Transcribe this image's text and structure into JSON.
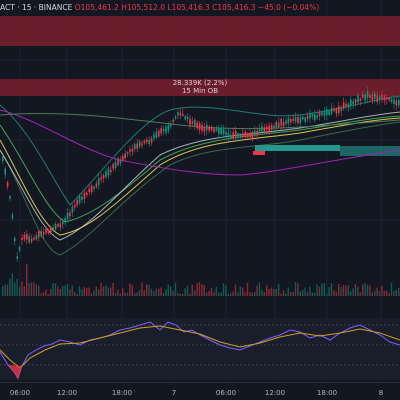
{
  "header": {
    "symbol": "ACT · 15 · BINANCE",
    "ohlc": "O105,461.2 H105,512.0 L105,416.3 C105,416.3 −45.0 (−0.04%)"
  },
  "order_block": {
    "volume": "28.339K (2.2%)",
    "label": "15 Min OB"
  },
  "x_axis": {
    "ticks": [
      "06:00",
      "12:00",
      "18:00",
      "7",
      "06:00",
      "12:00",
      "18:00",
      "8"
    ]
  },
  "colors": {
    "background": "#131722",
    "up_candle": "#089981",
    "down_candle": "#f23645",
    "ob_zone": "#7a1f2b",
    "bull_zone": "#26a69a",
    "oscillator": "#7b61ff",
    "signal": "#c9a227"
  },
  "icons": []
}
